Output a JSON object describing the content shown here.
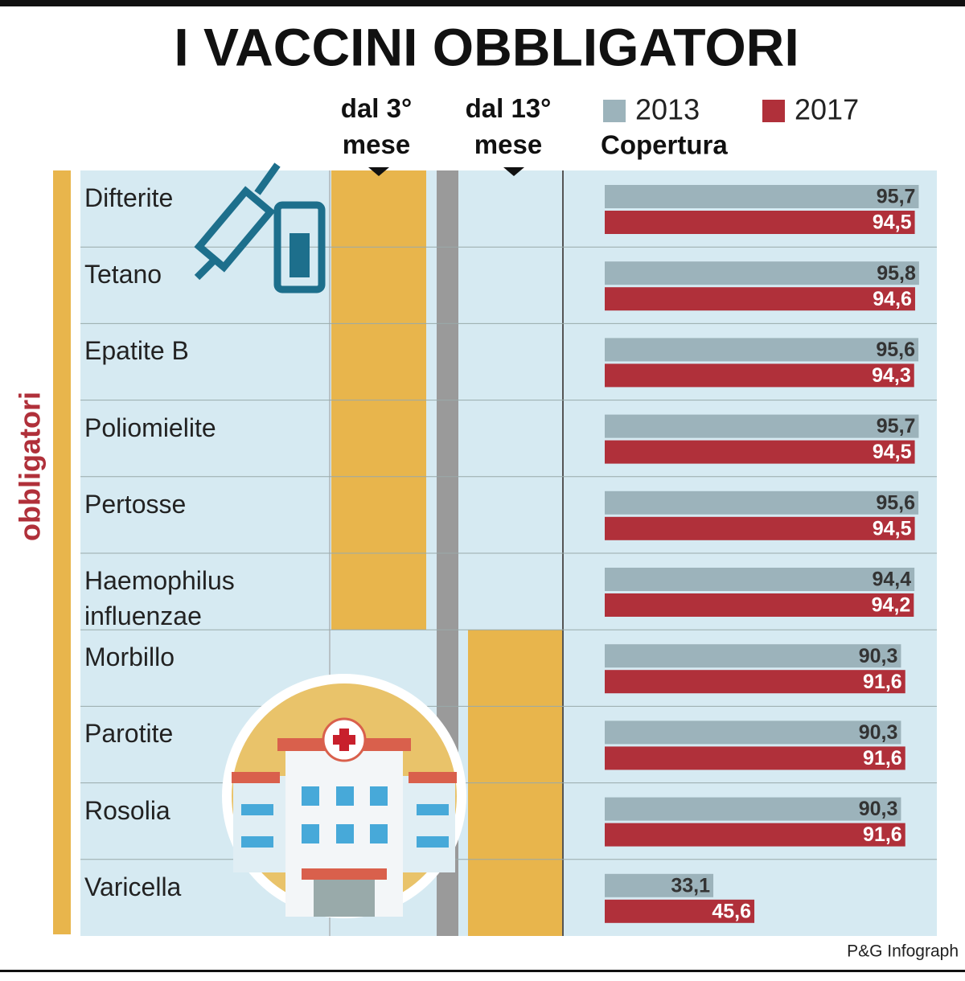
{
  "chart_data": {
    "type": "bar",
    "orientation": "horizontal",
    "title": "I VACCINI OBBLIGATORI",
    "column_headers": [
      "dal 3° mese",
      "dal 13° mese",
      "Copertura"
    ],
    "group_label": "obbligatori",
    "source": "P&G Infograph",
    "categories": [
      "Difterite",
      "Tetano",
      "Epatite B",
      "Poliomielite",
      "Pertosse",
      "Haemophilus influenzae",
      "Morbillo",
      "Parotite",
      "Rosolia",
      "Varicella"
    ],
    "series": [
      {
        "name": "2013",
        "color": "#9cb3bb",
        "values": [
          95.7,
          95.8,
          95.6,
          95.7,
          95.6,
          94.4,
          90.3,
          90.3,
          90.3,
          33.1
        ],
        "value_labels": [
          "95,7",
          "95,8",
          "95,6",
          "95,7",
          "95,6",
          "94,4",
          "90,3",
          "90,3",
          "90,3",
          "33,1"
        ]
      },
      {
        "name": "2017",
        "color": "#b0303a",
        "values": [
          94.5,
          94.6,
          94.3,
          94.5,
          94.5,
          94.2,
          91.6,
          91.6,
          91.6,
          45.6
        ],
        "value_labels": [
          "94,5",
          "94,6",
          "94,3",
          "94,5",
          "94,5",
          "94,2",
          "91,6",
          "91,6",
          "91,6",
          "45,6"
        ]
      }
    ],
    "xlim": [
      0,
      100
    ]
  }
}
